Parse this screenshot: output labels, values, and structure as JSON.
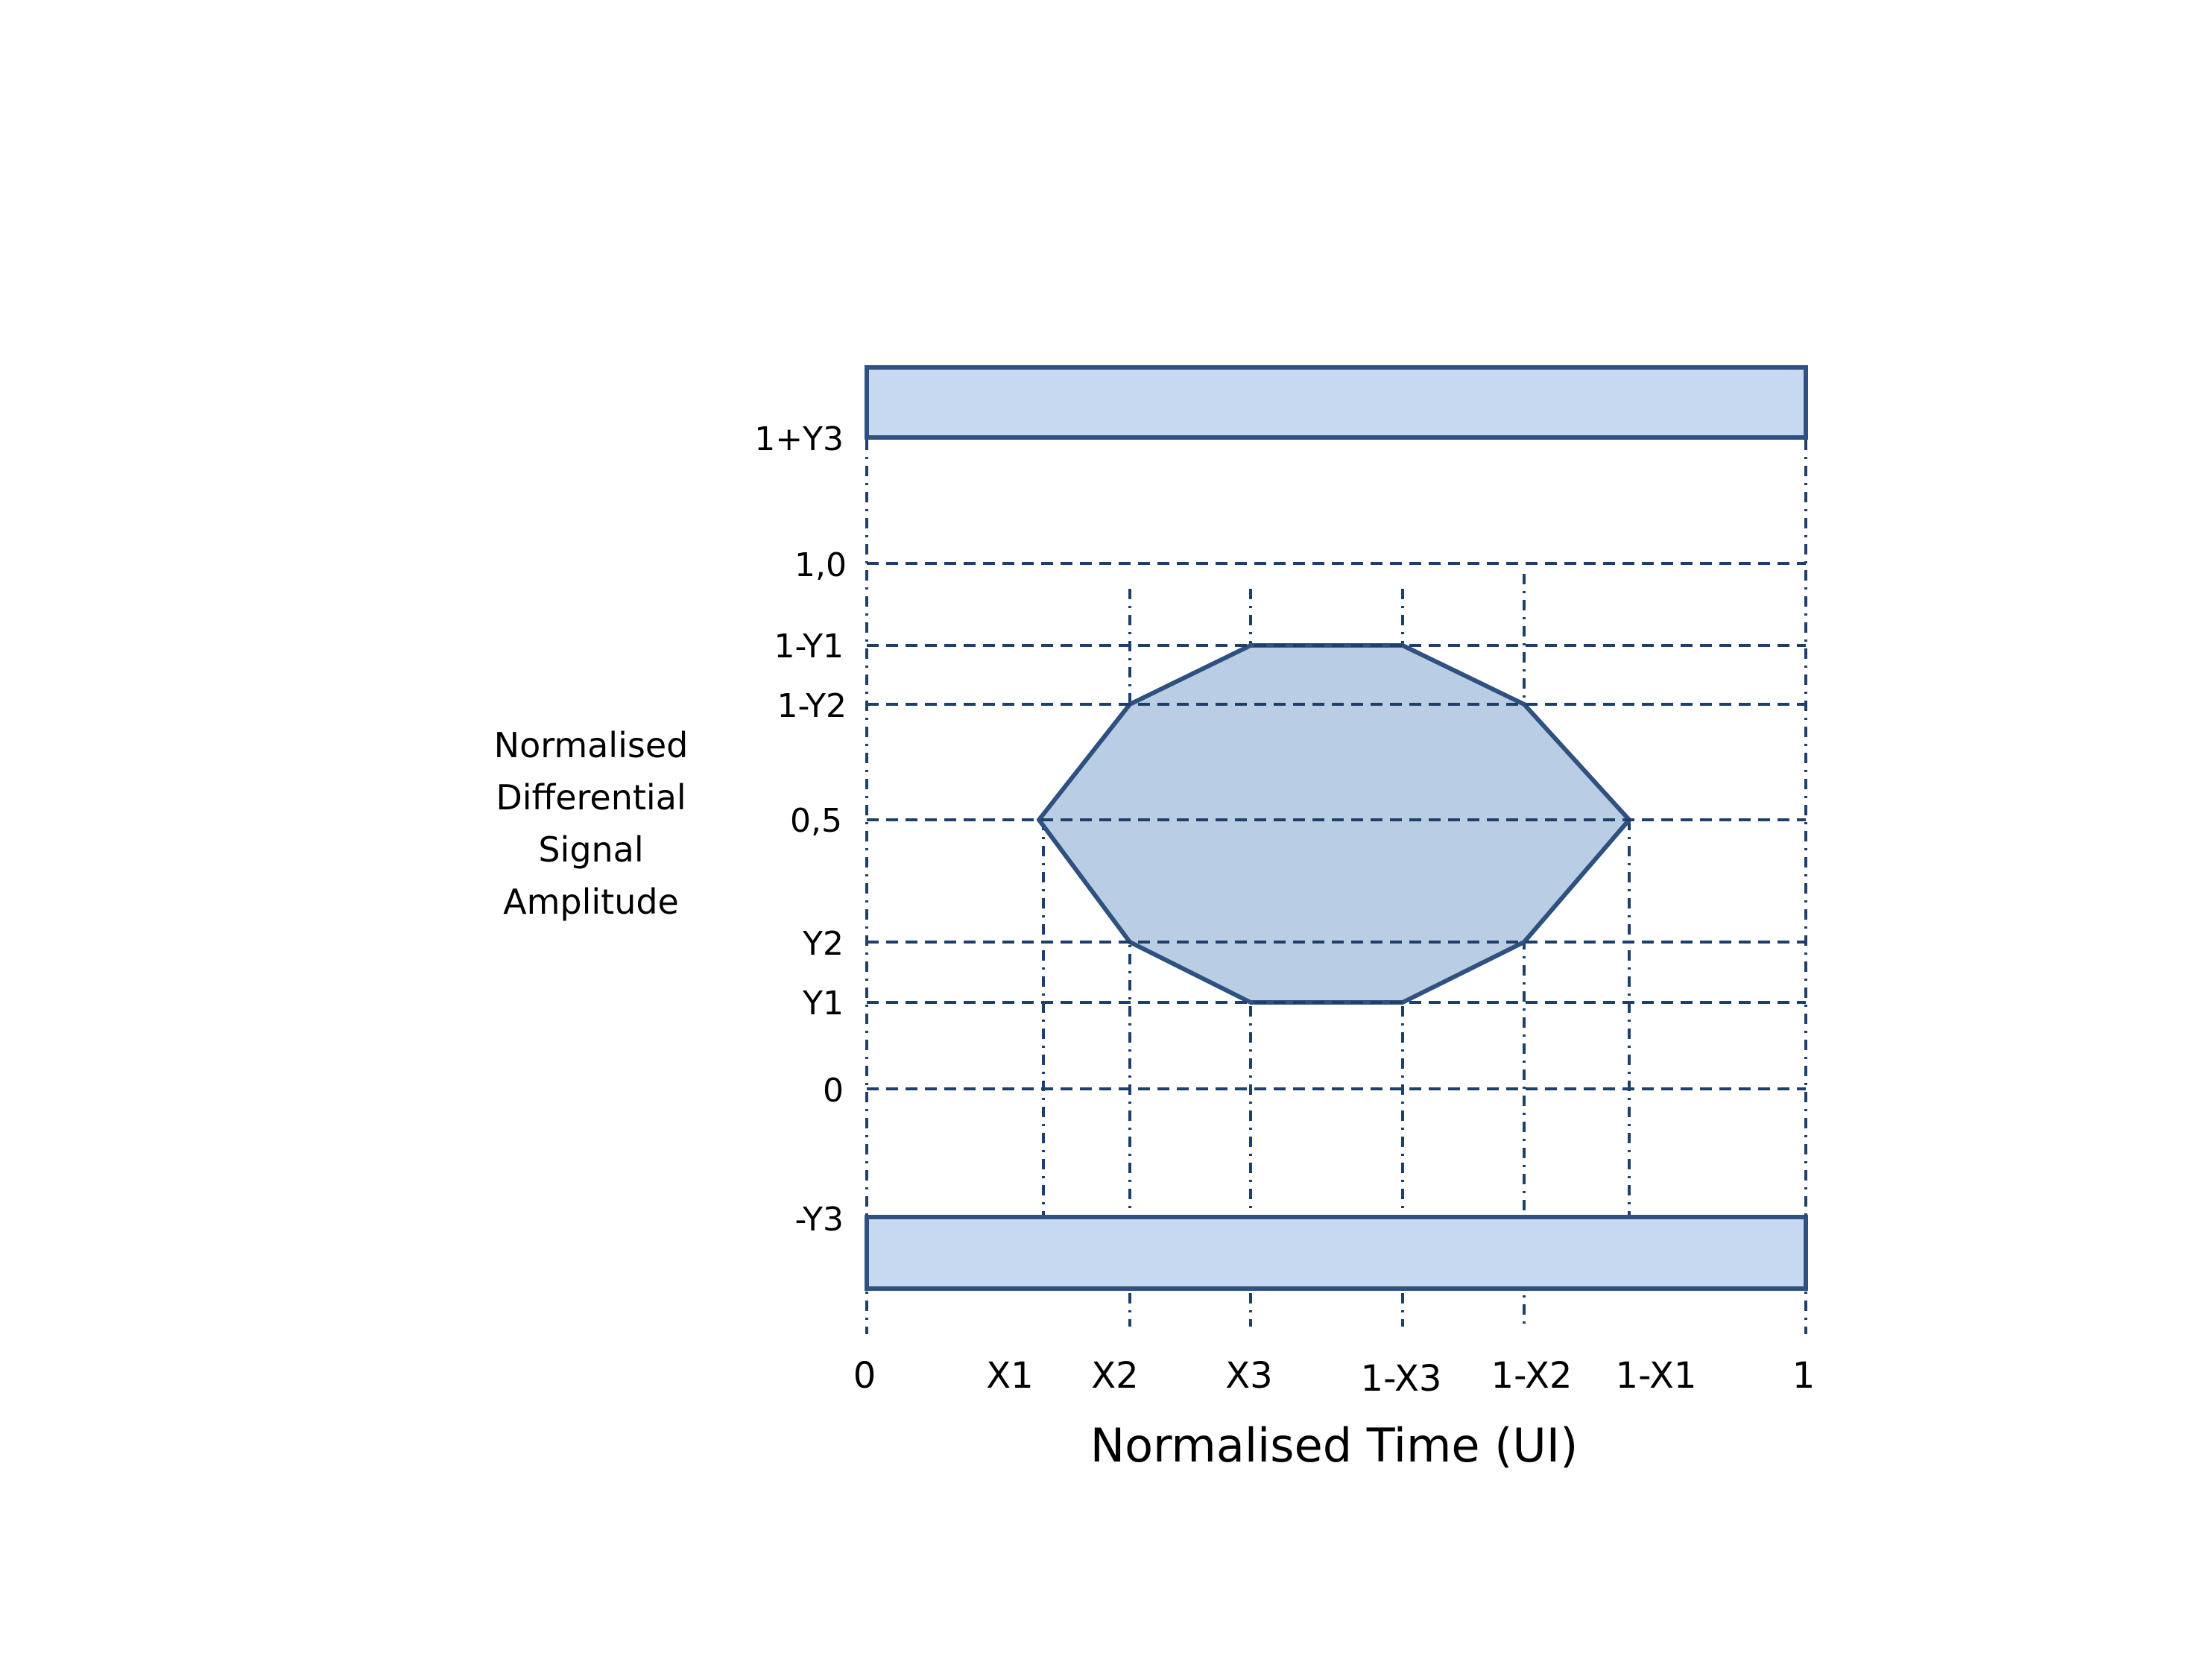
{
  "diagram": {
    "y_axis_title_lines": [
      "Normalised",
      "Differential",
      "Signal",
      "Amplitude"
    ],
    "x_axis_title": "Normalised Time (UI)",
    "y_labels": {
      "top_bar": "1+Y3",
      "one": "1,0",
      "one_minus_y1": "1-Y1",
      "one_minus_y2": "1-Y2",
      "half": "0,5",
      "y2": "Y2",
      "y1": "Y1",
      "zero": "0",
      "bottom_bar": "-Y3"
    },
    "x_labels": {
      "zero": "0",
      "x1": "X1",
      "x2": "X2",
      "x3": "X3",
      "one_minus_x3": "1-X3",
      "one_minus_x2": "1-X2",
      "one_minus_x1": "1-X1",
      "one": "1"
    },
    "colors": {
      "outline": "#2f5180",
      "gridline": "#1f3f6b",
      "bar_fill": "#c6d9f0",
      "eye_fill": "#b9cde4"
    }
  }
}
